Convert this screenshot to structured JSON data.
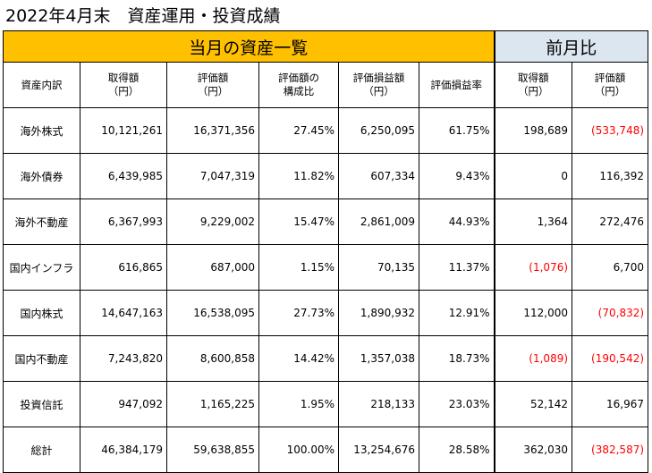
{
  "title": "2022年4月末　資産運用・投資成績",
  "band": {
    "current_label": "当月の資産一覧",
    "previous_label": "前月比"
  },
  "headers": [
    [
      "資産内訳"
    ],
    [
      "取得額",
      "（円）"
    ],
    [
      "評価額",
      "（円）"
    ],
    [
      "評価額の",
      "構成比"
    ],
    [
      "評価損益額",
      "（円）"
    ],
    [
      "評価損益率"
    ],
    [
      "取得額",
      "（円）"
    ],
    [
      "評価額",
      "（円）"
    ]
  ],
  "rows": [
    {
      "label": "海外株式",
      "cost": "10,121,261",
      "value": "16,371,356",
      "share": "27.45%",
      "gain": "6,250,095",
      "rate": "61.75%",
      "d_cost": "198,689",
      "d_value": "(533,748)"
    },
    {
      "label": "海外債券",
      "cost": "6,439,985",
      "value": "7,047,319",
      "share": "11.82%",
      "gain": "607,334",
      "rate": "9.43%",
      "d_cost": "0",
      "d_value": "116,392"
    },
    {
      "label": "海外不動産",
      "cost": "6,367,993",
      "value": "9,229,002",
      "share": "15.47%",
      "gain": "2,861,009",
      "rate": "44.93%",
      "d_cost": "1,364",
      "d_value": "272,476"
    },
    {
      "label": "国内インフラ",
      "cost": "616,865",
      "value": "687,000",
      "share": "1.15%",
      "gain": "70,135",
      "rate": "11.37%",
      "d_cost": "(1,076)",
      "d_value": "6,700"
    },
    {
      "label": "国内株式",
      "cost": "14,647,163",
      "value": "16,538,095",
      "share": "27.73%",
      "gain": "1,890,932",
      "rate": "12.91%",
      "d_cost": "112,000",
      "d_value": "(70,832)"
    },
    {
      "label": "国内不動産",
      "cost": "7,243,820",
      "value": "8,600,858",
      "share": "14.42%",
      "gain": "1,357,038",
      "rate": "18.73%",
      "d_cost": "(1,089)",
      "d_value": "(190,542)"
    },
    {
      "label": "投資信託",
      "cost": "947,092",
      "value": "1,165,225",
      "share": "1.95%",
      "gain": "218,133",
      "rate": "23.03%",
      "d_cost": "52,142",
      "d_value": "16,967"
    },
    {
      "label": "総計",
      "cost": "46,384,179",
      "value": "59,638,855",
      "share": "100.00%",
      "gain": "13,254,676",
      "rate": "28.58%",
      "d_cost": "362,030",
      "d_value": "(382,587)"
    }
  ],
  "colors": {
    "current_band": "#ffc000",
    "previous_band": "#dce6f1",
    "negative_text": "#ff0000"
  }
}
